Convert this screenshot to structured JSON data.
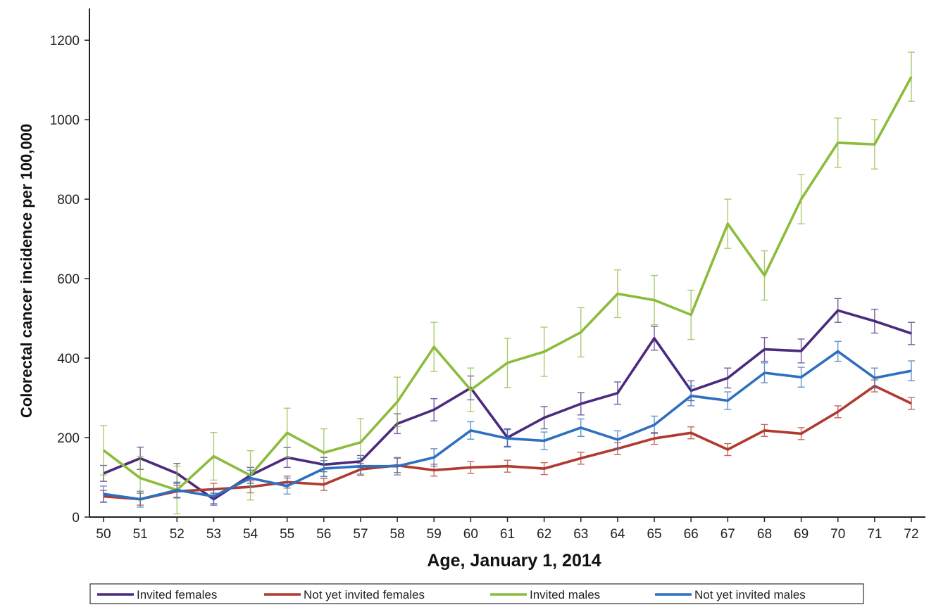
{
  "chart_data": {
    "type": "line",
    "title": "",
    "xlabel": "Age, January 1, 2014",
    "ylabel": "Colorectal cancer incidence per 100,000",
    "x": [
      50,
      51,
      52,
      53,
      54,
      55,
      56,
      57,
      58,
      59,
      60,
      61,
      62,
      63,
      64,
      65,
      66,
      67,
      68,
      69,
      70,
      71,
      72
    ],
    "xlim": [
      50,
      72
    ],
    "ylim": [
      0,
      1280
    ],
    "yticks": [
      0,
      200,
      400,
      600,
      800,
      1000,
      1200
    ],
    "grid": false,
    "legend_position": "bottom",
    "series": [
      {
        "name": "Invited females",
        "color": "#4b2a7e",
        "values": [
          110,
          148,
          110,
          45,
          105,
          150,
          132,
          140,
          235,
          270,
          325,
          200,
          250,
          285,
          312,
          450,
          318,
          350,
          422,
          418,
          520,
          493,
          462
        ],
        "err": [
          20,
          28,
          25,
          15,
          20,
          25,
          18,
          15,
          25,
          28,
          30,
          22,
          28,
          28,
          28,
          30,
          25,
          25,
          30,
          30,
          30,
          30,
          28
        ]
      },
      {
        "name": "Not yet invited females",
        "color": "#b03a2e",
        "values": [
          52,
          45,
          65,
          70,
          76,
          88,
          82,
          120,
          130,
          118,
          125,
          128,
          122,
          148,
          172,
          198,
          212,
          170,
          218,
          210,
          265,
          330,
          286
        ],
        "err": [
          15,
          15,
          15,
          15,
          15,
          15,
          15,
          15,
          18,
          15,
          15,
          15,
          15,
          15,
          15,
          15,
          15,
          15,
          15,
          15,
          15,
          15,
          15
        ]
      },
      {
        "name": "Invited males",
        "color": "#8cbc3c",
        "values": [
          168,
          98,
          68,
          153,
          105,
          212,
          162,
          188,
          290,
          428,
          320,
          388,
          416,
          465,
          562,
          546,
          509,
          738,
          608,
          800,
          942,
          938,
          1108
        ],
        "err": [
          62,
          55,
          60,
          60,
          62,
          62,
          60,
          60,
          62,
          62,
          55,
          62,
          62,
          62,
          60,
          62,
          62,
          62,
          62,
          62,
          62,
          62,
          62
        ]
      },
      {
        "name": "Not yet invited males",
        "color": "#2e6fc0",
        "values": [
          58,
          45,
          68,
          52,
          98,
          78,
          122,
          128,
          128,
          150,
          218,
          198,
          192,
          225,
          195,
          232,
          305,
          293,
          363,
          352,
          417,
          350,
          368
        ],
        "err": [
          20,
          20,
          20,
          18,
          20,
          20,
          20,
          20,
          22,
          22,
          22,
          22,
          22,
          22,
          22,
          22,
          25,
          22,
          25,
          25,
          25,
          25,
          25
        ]
      }
    ]
  }
}
